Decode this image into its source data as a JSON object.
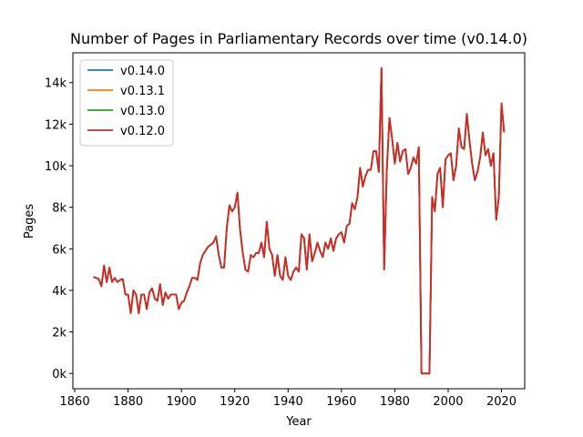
{
  "chart_data": {
    "type": "line",
    "title": "Number of Pages in Parliamentary Records over time (v0.14.0)",
    "x_label": "Year",
    "y_label": "Pages",
    "x": [
      1867,
      1868,
      1869,
      1870,
      1871,
      1872,
      1873,
      1874,
      1875,
      1876,
      1877,
      1878,
      1879,
      1880,
      1881,
      1882,
      1883,
      1884,
      1885,
      1886,
      1887,
      1888,
      1889,
      1890,
      1891,
      1892,
      1893,
      1894,
      1895,
      1896,
      1897,
      1898,
      1899,
      1900,
      1901,
      1902,
      1903,
      1904,
      1905,
      1906,
      1907,
      1908,
      1909,
      1910,
      1911,
      1912,
      1913,
      1914,
      1915,
      1916,
      1917,
      1918,
      1919,
      1920,
      1921,
      1922,
      1923,
      1924,
      1925,
      1926,
      1927,
      1928,
      1929,
      1930,
      1931,
      1932,
      1933,
      1934,
      1935,
      1936,
      1937,
      1938,
      1939,
      1940,
      1941,
      1942,
      1943,
      1944,
      1945,
      1946,
      1947,
      1948,
      1949,
      1950,
      1951,
      1952,
      1953,
      1954,
      1955,
      1956,
      1957,
      1958,
      1959,
      1960,
      1961,
      1962,
      1963,
      1964,
      1965,
      1966,
      1967,
      1968,
      1969,
      1970,
      1971,
      1972,
      1973,
      1974,
      1975,
      1976,
      1977,
      1978,
      1979,
      1980,
      1981,
      1982,
      1983,
      1984,
      1985,
      1986,
      1987,
      1988,
      1989,
      1990,
      1991,
      1992,
      1993,
      1994,
      1995,
      1996,
      1997,
      1998,
      1999,
      2000,
      2001,
      2002,
      2003,
      2004,
      2005,
      2006,
      2007,
      2008,
      2009,
      2010,
      2011,
      2012,
      2013,
      2014,
      2015,
      2016,
      2017,
      2018,
      2019,
      2020,
      2021
    ],
    "series": [
      {
        "name": "v0.14.0",
        "color": "#1f77b4",
        "values": [
          4650,
          4600,
          4550,
          4200,
          5200,
          4400,
          5100,
          4400,
          4600,
          4400,
          4500,
          4550,
          3800,
          3800,
          2900,
          4000,
          3800,
          2900,
          3800,
          3800,
          3100,
          3900,
          4100,
          3600,
          3500,
          4300,
          3300,
          3900,
          3600,
          3800,
          3800,
          3800,
          3100,
          3400,
          3500,
          3900,
          4200,
          4600,
          4600,
          4500,
          5300,
          5700,
          5900,
          6100,
          6200,
          6300,
          6600,
          5700,
          5100,
          5100,
          7000,
          8100,
          7800,
          8000,
          8700,
          6900,
          5800,
          5000,
          4900,
          5700,
          5600,
          5800,
          5800,
          6300,
          5600,
          7300,
          6000,
          5700,
          4700,
          5700,
          4700,
          4500,
          5600,
          4700,
          4500,
          4900,
          5100,
          4900,
          6700,
          6500,
          5000,
          6700,
          5400,
          5800,
          6300,
          5900,
          5600,
          6300,
          6000,
          6500,
          5900,
          6500,
          6700,
          6800,
          6300,
          7100,
          7200,
          8200,
          7900,
          8500,
          9900,
          9000,
          9500,
          9800,
          9800,
          10700,
          10700,
          9700,
          14700,
          5000,
          9800,
          12300,
          11300,
          10100,
          11100,
          10200,
          10700,
          10800,
          9600,
          9900,
          10400,
          10100,
          10900,
          0,
          0,
          0,
          0,
          8500,
          7800,
          9600,
          9900,
          8000,
          10300,
          10500,
          10600,
          9300,
          10000,
          11800,
          10900,
          10800,
          12500,
          11200,
          10100,
          9300,
          9700,
          10400,
          11600,
          10500,
          10800,
          10000,
          10600,
          7400,
          8500,
          13000,
          11600
        ]
      },
      {
        "name": "v0.13.1",
        "color": "#ff7f0e",
        "values": [
          4650,
          4600,
          4550,
          4200,
          5200,
          4400,
          5100,
          4400,
          4600,
          4400,
          4500,
          4550,
          3800,
          3800,
          2900,
          4000,
          3800,
          2900,
          3800,
          3800,
          3100,
          3900,
          4100,
          3600,
          3500,
          4300,
          3300,
          3900,
          3600,
          3800,
          3800,
          3800,
          3100,
          3400,
          3500,
          3900,
          4200,
          4600,
          4600,
          4500,
          5300,
          5700,
          5900,
          6100,
          6200,
          6300,
          6600,
          5700,
          5100,
          5100,
          7000,
          8100,
          7800,
          8000,
          8700,
          6900,
          5800,
          5000,
          4900,
          5700,
          5600,
          5800,
          5800,
          6300,
          5600,
          7300,
          6000,
          5700,
          4700,
          5700,
          4700,
          4500,
          5600,
          4700,
          4500,
          4900,
          5100,
          4900,
          6700,
          6500,
          5000,
          6700,
          5400,
          5800,
          6300,
          5900,
          5600,
          6300,
          6000,
          6500,
          5900,
          6500,
          6700,
          6800,
          6300,
          7100,
          7200,
          8200,
          7900,
          8500,
          9900,
          9000,
          9500,
          9800,
          9800,
          10700,
          10700,
          9700,
          14700,
          5000,
          9800,
          12300,
          11300,
          10100,
          11100,
          10200,
          10700,
          10800,
          9600,
          9900,
          10400,
          10100,
          10900,
          0,
          0,
          0,
          0,
          8500,
          7800,
          9600,
          9900,
          8000,
          10300,
          10500,
          10600,
          9300,
          10000,
          11800,
          10900,
          10800,
          12500,
          11200,
          10100,
          9300,
          9700,
          10400,
          11600,
          10500,
          10800,
          10000,
          10600,
          7400,
          8500,
          13000,
          11600
        ]
      },
      {
        "name": "v0.13.0",
        "color": "#2ca02c",
        "values": [
          4650,
          4600,
          4550,
          4200,
          5200,
          4400,
          5100,
          4400,
          4600,
          4400,
          4500,
          4550,
          3800,
          3800,
          2900,
          4000,
          3800,
          2900,
          3800,
          3800,
          3100,
          3900,
          4100,
          3600,
          3500,
          4300,
          3300,
          3900,
          3600,
          3800,
          3800,
          3800,
          3100,
          3400,
          3500,
          3900,
          4200,
          4600,
          4600,
          4500,
          5300,
          5700,
          5900,
          6100,
          6200,
          6300,
          6600,
          5700,
          5100,
          5100,
          7000,
          8100,
          7800,
          8000,
          8700,
          6900,
          5800,
          5000,
          4900,
          5700,
          5600,
          5800,
          5800,
          6300,
          5600,
          7300,
          6000,
          5700,
          4700,
          5700,
          4700,
          4500,
          5600,
          4700,
          4500,
          4900,
          5100,
          4900,
          6700,
          6500,
          5000,
          6700,
          5400,
          5800,
          6300,
          5900,
          5600,
          6300,
          6000,
          6500,
          5900,
          6500,
          6700,
          6800,
          6300,
          7100,
          7200,
          8200,
          7900,
          8500,
          9900,
          9000,
          9500,
          9800,
          9800,
          10700,
          10700,
          9700,
          14700,
          5000,
          9800,
          12300,
          11300,
          10100,
          11100,
          10200,
          10700,
          10800,
          9600,
          9900,
          10400,
          10100,
          10900,
          0,
          0,
          0,
          0,
          8500,
          7800,
          9600,
          9900,
          8000,
          10300,
          10500,
          10600,
          9300,
          10000,
          11800,
          10900,
          10800,
          12500,
          11200,
          10100,
          9300,
          9700,
          10400,
          11600,
          10500,
          10800,
          10000,
          10600,
          7400,
          8500,
          13000,
          11600
        ]
      },
      {
        "name": "v0.12.0",
        "color": "#d62728",
        "values": [
          4650,
          4600,
          4550,
          4200,
          5200,
          4400,
          5100,
          4400,
          4600,
          4400,
          4500,
          4550,
          3800,
          3800,
          2900,
          4000,
          3800,
          2900,
          3800,
          3800,
          3100,
          3900,
          4100,
          3600,
          3500,
          4300,
          3300,
          3900,
          3600,
          3800,
          3800,
          3800,
          3100,
          3400,
          3500,
          3900,
          4200,
          4600,
          4600,
          4500,
          5300,
          5700,
          5900,
          6100,
          6200,
          6300,
          6600,
          5700,
          5100,
          5100,
          7000,
          8100,
          7800,
          8000,
          8700,
          6900,
          5800,
          5000,
          4900,
          5700,
          5600,
          5800,
          5800,
          6300,
          5600,
          7300,
          6000,
          5700,
          4700,
          5700,
          4700,
          4500,
          5600,
          4700,
          4500,
          4900,
          5100,
          4900,
          6700,
          6500,
          5000,
          6700,
          5400,
          5800,
          6300,
          5900,
          5600,
          6300,
          6000,
          6500,
          5900,
          6500,
          6700,
          6800,
          6300,
          7100,
          7200,
          8200,
          7900,
          8500,
          9900,
          9000,
          9500,
          9800,
          9800,
          10700,
          10700,
          9700,
          14700,
          5000,
          9800,
          12300,
          11300,
          10100,
          11100,
          10200,
          10700,
          10800,
          9600,
          9900,
          10400,
          10100,
          10900,
          0,
          0,
          0,
          0,
          8500,
          7800,
          9600,
          9900,
          8000,
          10300,
          10500,
          10600,
          9300,
          10000,
          11800,
          10900,
          10800,
          12500,
          11200,
          10100,
          9300,
          9700,
          10400,
          11600,
          10500,
          10800,
          10000,
          10600,
          7400,
          8500,
          13000,
          11600
        ]
      }
    ],
    "xlim": [
      1859.3,
      2028.7
    ],
    "ylim": [
      -735,
      15435
    ],
    "xticks": [
      1860,
      1880,
      1900,
      1920,
      1940,
      1960,
      1980,
      2000,
      2020
    ],
    "yticks": [
      {
        "value": 0,
        "label": "0k"
      },
      {
        "value": 2000,
        "label": "2k"
      },
      {
        "value": 4000,
        "label": "4k"
      },
      {
        "value": 6000,
        "label": "6k"
      },
      {
        "value": 8000,
        "label": "8k"
      },
      {
        "value": 10000,
        "label": "10k"
      },
      {
        "value": 12000,
        "label": "12k"
      },
      {
        "value": 14000,
        "label": "14k"
      }
    ],
    "legend": "upper left"
  }
}
